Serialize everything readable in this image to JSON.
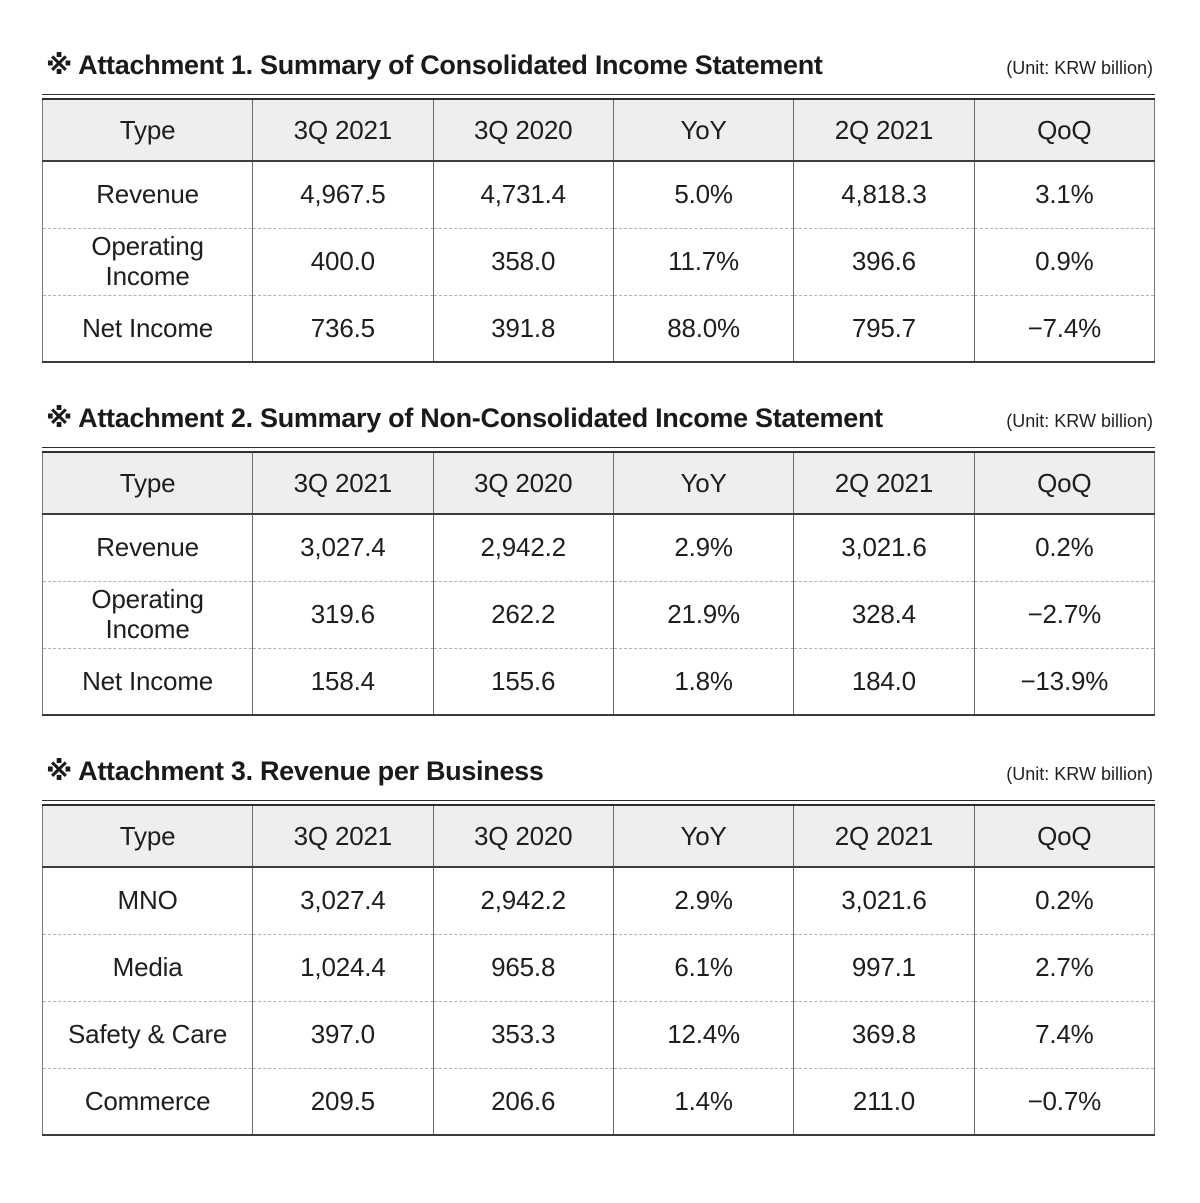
{
  "unit_label": "(Unit: KRW billion)",
  "columns": [
    "Type",
    "3Q 2021",
    "3Q 2020",
    "YoY",
    "2Q 2021",
    "QoQ"
  ],
  "tables": [
    {
      "title": "※ Attachment 1. Summary of Consolidated Income Statement",
      "rows": [
        [
          "Revenue",
          "4,967.5",
          "4,731.4",
          "5.0%",
          "4,818.3",
          "3.1%"
        ],
        [
          "Operating Income",
          "400.0",
          "358.0",
          "11.7%",
          "396.6",
          "0.9%"
        ],
        [
          "Net Income",
          "736.5",
          "391.8",
          "88.0%",
          "795.7",
          "−7.4%"
        ]
      ]
    },
    {
      "title": "※ Attachment 2. Summary of Non-Consolidated Income Statement",
      "rows": [
        [
          "Revenue",
          "3,027.4",
          "2,942.2",
          "2.9%",
          "3,021.6",
          "0.2%"
        ],
        [
          "Operating Income",
          "319.6",
          "262.2",
          "21.9%",
          "328.4",
          "−2.7%"
        ],
        [
          "Net Income",
          "158.4",
          "155.6",
          "1.8%",
          "184.0",
          "−13.9%"
        ]
      ]
    },
    {
      "title": "※ Attachment 3. Revenue per Business",
      "rows": [
        [
          "MNO",
          "3,027.4",
          "2,942.2",
          "2.9%",
          "3,021.6",
          "0.2%"
        ],
        [
          "Media",
          "1,024.4",
          "965.8",
          "6.1%",
          "997.1",
          "2.7%"
        ],
        [
          "Safety & Care",
          "397.0",
          "353.3",
          "12.4%",
          "369.8",
          "7.4%"
        ],
        [
          "Commerce",
          "209.5",
          "206.6",
          "1.4%",
          "211.0",
          "−0.7%"
        ]
      ]
    }
  ],
  "colors": {
    "header_bg": "#eeeeee",
    "text": "#1e1e1e",
    "border_dark": "#2f2f2f",
    "border_column": "#6b6b6b",
    "row_separator": "#b3b3b3"
  }
}
